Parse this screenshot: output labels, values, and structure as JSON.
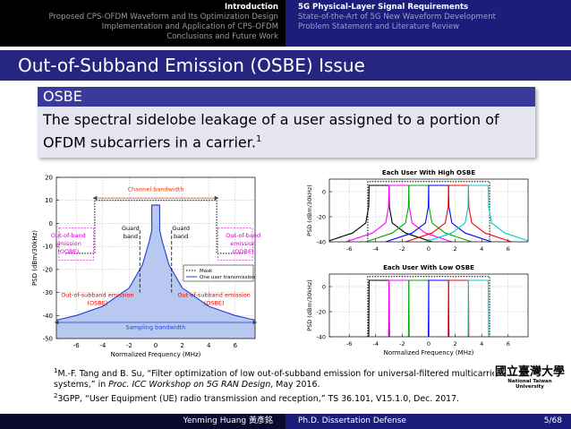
{
  "header": {
    "left": [
      "Introduction",
      "Proposed CPS-OFDM Waveform and Its Optimization Design",
      "Implementation and Application of CPS-OFDM",
      "Conclusions and Future Work"
    ],
    "right": [
      "5G Physical-Layer Signal Requirements",
      "State-of-the-Art of 5G New Waveform Development",
      "Problem Statement and Literature Review"
    ]
  },
  "frame_title": "Out-of-Subband Emission (OSBE) Issue",
  "block": {
    "title": "OSBE",
    "body": "The spectral sidelobe leakage of a user assigned to a portion of OFDM subcarriers in a carrier.",
    "footnote_mark": "1"
  },
  "figures": [
    {
      "type": "line",
      "xlabel": "Normalized Frequency (MHz)",
      "ylabel": "PSD (dBm/30kHz)",
      "xlim": [
        -7.5,
        7.5
      ],
      "xticks": [
        -6,
        -4,
        -2,
        0,
        2,
        4,
        6
      ],
      "ylim": [
        -50,
        20
      ],
      "yticks": [
        -50,
        -40,
        -30,
        -20,
        -10,
        0,
        10,
        20
      ],
      "grid": true,
      "legend": "lower right",
      "series": [
        {
          "name": "Mask",
          "color": "#000000",
          "dash": true,
          "x": [
            -6.8,
            -4.6,
            -4.6,
            4.6,
            4.6,
            6.8
          ],
          "values": [
            -13,
            -13,
            10,
            10,
            -13,
            -13
          ]
        },
        {
          "name": "One user transmission",
          "color": "#1f3fd0",
          "fill": "#b8c8f0",
          "x": [
            -7.5,
            -6,
            -4,
            -2,
            -1,
            -0.5,
            -0.3,
            -0.3,
            0.3,
            0.3,
            0.5,
            1,
            2,
            4,
            6,
            7.5
          ],
          "values": [
            -42,
            -40,
            -36,
            -28,
            -18,
            -8,
            -3,
            8,
            8,
            -3,
            -8,
            -18,
            -28,
            -36,
            -40,
            -42
          ]
        }
      ],
      "annotations": [
        {
          "lines": [
            "Channel bandwidth"
          ],
          "color": "#e04010"
        },
        {
          "lines": [
            "Guard",
            "band"
          ],
          "color": "#000000"
        },
        {
          "lines": [
            "Guard",
            "band"
          ],
          "color": "#000000"
        },
        {
          "lines": [
            "Out-of-band",
            "emission",
            "(OOBE)"
          ],
          "color": "#d000d0"
        },
        {
          "lines": [
            "Out-of-band",
            "emission",
            "(OOBE)"
          ],
          "color": "#d000d0"
        },
        {
          "lines": [
            "Out-of-subband emission",
            "(OSBE)"
          ],
          "color": "#e00000"
        },
        {
          "lines": [
            "Out-of-subband emission",
            "(OSBE)"
          ],
          "color": "#e00000"
        },
        {
          "lines": [
            "Sampling bandwidth"
          ],
          "color": "#1f3fd0"
        }
      ]
    },
    {
      "type": "line",
      "title": "Each User With High OSBE",
      "ylabel": "PSD (dBm/30kHz)",
      "xlim": [
        -7.5,
        7.5
      ],
      "xticks": [
        -6,
        -4,
        -2,
        0,
        2,
        4,
        6
      ],
      "ylim": [
        -40,
        10
      ],
      "yticks": [
        -40,
        -20,
        0
      ],
      "grid": true,
      "series": [
        {
          "color": "#000000",
          "dash": true,
          "x": [
            -4.6,
            -4.6,
            4.6,
            4.6
          ],
          "values": [
            -40,
            8,
            8,
            -40
          ]
        },
        {
          "color": "#000000",
          "x": [
            -7.75,
            -5.75,
            -4.75,
            -4.53,
            -4.5,
            -3,
            -2.97,
            -2.75,
            -1.75,
            0.25
          ],
          "values": [
            -40,
            -33,
            -25,
            -12,
            5,
            5,
            -12,
            -25,
            -33,
            -40
          ]
        },
        {
          "color": "#ff00ff",
          "x": [
            -6.25,
            -4.25,
            -3.25,
            -3.03,
            -3,
            -1.5,
            -1.47,
            -1.25,
            -0.25,
            1.75
          ],
          "values": [
            -40,
            -33,
            -25,
            -12,
            5,
            5,
            -12,
            -25,
            -33,
            -40
          ]
        },
        {
          "color": "#00aa00",
          "x": [
            -4.75,
            -2.75,
            -1.75,
            -1.53,
            -1.5,
            0,
            0.03,
            0.25,
            1.25,
            3.25
          ],
          "values": [
            -40,
            -33,
            -25,
            -12,
            5,
            5,
            -12,
            -25,
            -33,
            -40
          ]
        },
        {
          "color": "#0000ff",
          "x": [
            -3.25,
            -1.25,
            -0.25,
            -0.03,
            0,
            1.5,
            1.53,
            1.75,
            2.75,
            4.75
          ],
          "values": [
            -40,
            -33,
            -25,
            -12,
            5,
            5,
            -12,
            -25,
            -33,
            -40
          ]
        },
        {
          "color": "#ff0000",
          "x": [
            -1.75,
            0.25,
            1.25,
            1.47,
            1.5,
            3,
            3.03,
            3.25,
            4.25,
            6.25
          ],
          "values": [
            -40,
            -33,
            -25,
            -12,
            5,
            5,
            -12,
            -25,
            -33,
            -40
          ]
        },
        {
          "color": "#00cccc",
          "x": [
            -0.25,
            1.75,
            2.75,
            2.97,
            3,
            4.5,
            4.53,
            4.75,
            5.75,
            7.75
          ],
          "values": [
            -40,
            -33,
            -25,
            -12,
            5,
            5,
            -12,
            -25,
            -33,
            -40
          ]
        }
      ]
    },
    {
      "type": "line",
      "title": "Each User With Low OSBE",
      "xlabel": "Normalized Frequency (MHz)",
      "ylabel": "PSD (dBm/30kHz)",
      "xlim": [
        -7.5,
        7.5
      ],
      "xticks": [
        -6,
        -4,
        -2,
        0,
        2,
        4,
        6
      ],
      "ylim": [
        -40,
        10
      ],
      "yticks": [
        -40,
        -20,
        0
      ],
      "grid": true,
      "series": [
        {
          "color": "#000000",
          "dash": true,
          "x": [
            -4.6,
            -4.6,
            4.6,
            4.6
          ],
          "values": [
            -40,
            8,
            8,
            -40
          ]
        },
        {
          "color": "#000000",
          "x": [
            -4.53,
            -4.5,
            -3,
            -2.97
          ],
          "values": [
            -40,
            5,
            5,
            -40
          ]
        },
        {
          "color": "#ff00ff",
          "x": [
            -3.03,
            -3,
            -1.5,
            -1.47
          ],
          "values": [
            -40,
            5,
            5,
            -40
          ]
        },
        {
          "color": "#00aa00",
          "x": [
            -1.53,
            -1.5,
            0,
            0.03
          ],
          "values": [
            -40,
            5,
            5,
            -40
          ]
        },
        {
          "color": "#0000ff",
          "x": [
            -0.03,
            0,
            1.5,
            1.53
          ],
          "values": [
            -40,
            5,
            5,
            -40
          ]
        },
        {
          "color": "#ff0000",
          "x": [
            1.47,
            1.5,
            3,
            3.03
          ],
          "values": [
            -40,
            5,
            5,
            -40
          ]
        },
        {
          "color": "#00cccc",
          "x": [
            2.97,
            3,
            4.5,
            4.53
          ],
          "values": [
            -40,
            5,
            5,
            -40
          ]
        }
      ]
    }
  ],
  "footnotes": [
    {
      "mark": "1",
      "pre": "M.-F. Tang and B. Su, “Filter optimization of low out-of-subband emission for universal-filtered multicarrier systems,” in ",
      "italic": "Proc. ICC Workshop on 5G RAN Design",
      "post": ", May 2016."
    },
    {
      "mark": "2",
      "pre": "3GPP, “User Equipment (UE) radio transmission and reception,” TS 36.101, V15.1.0, Dec. 2017."
    }
  ],
  "logo": {
    "name": "國立臺灣大學",
    "caption": "National Taiwan University"
  },
  "footer": {
    "author": "Yenming Huang 黃彥銘",
    "title": "Ph.D. Dissertation Defense",
    "page": "5/68"
  }
}
